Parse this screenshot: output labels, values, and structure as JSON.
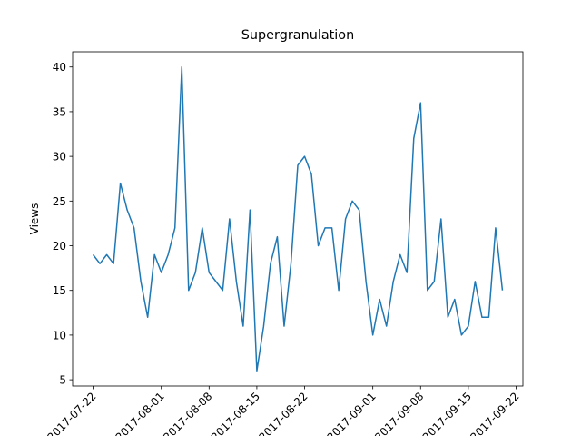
{
  "chart_data": {
    "type": "line",
    "title": "Supergranulation",
    "ylabel": "Views",
    "x": [
      "2017-07-22",
      "2017-07-23",
      "2017-07-24",
      "2017-07-25",
      "2017-07-26",
      "2017-07-27",
      "2017-07-28",
      "2017-07-29",
      "2017-07-30",
      "2017-07-31",
      "2017-08-01",
      "2017-08-02",
      "2017-08-03",
      "2017-08-04",
      "2017-08-05",
      "2017-08-06",
      "2017-08-07",
      "2017-08-08",
      "2017-08-09",
      "2017-08-10",
      "2017-08-11",
      "2017-08-12",
      "2017-08-13",
      "2017-08-14",
      "2017-08-15",
      "2017-08-16",
      "2017-08-17",
      "2017-08-18",
      "2017-08-19",
      "2017-08-20",
      "2017-08-21",
      "2017-08-22",
      "2017-08-23",
      "2017-08-24",
      "2017-08-25",
      "2017-08-26",
      "2017-08-27",
      "2017-08-28",
      "2017-08-29",
      "2017-08-30",
      "2017-08-31",
      "2017-09-01",
      "2017-09-02",
      "2017-09-03",
      "2017-09-04",
      "2017-09-05",
      "2017-09-06",
      "2017-09-07",
      "2017-09-08",
      "2017-09-09",
      "2017-09-10",
      "2017-09-11",
      "2017-09-12",
      "2017-09-13",
      "2017-09-14",
      "2017-09-15",
      "2017-09-16",
      "2017-09-17",
      "2017-09-18",
      "2017-09-19",
      "2017-09-20"
    ],
    "series": [
      {
        "color": "#1f77b4",
        "values": [
          19,
          18,
          19,
          18,
          27,
          24,
          22,
          16,
          12,
          19,
          17,
          19,
          22,
          40,
          15,
          17,
          22,
          17,
          16,
          15,
          23,
          16,
          11,
          24,
          6,
          11,
          18,
          21,
          11,
          18,
          29,
          30,
          28,
          20,
          22,
          22,
          15,
          23,
          25,
          24,
          16,
          10,
          14,
          11,
          16,
          19,
          17,
          32,
          36,
          15,
          16,
          23,
          12,
          14,
          10,
          11,
          16,
          12,
          12,
          22,
          15
        ]
      }
    ],
    "xlim": [
      "2017-07-19",
      "2017-09-23"
    ],
    "xticks": [
      "2017-07-22",
      "2017-08-01",
      "2017-08-08",
      "2017-08-15",
      "2017-08-22",
      "2017-09-01",
      "2017-09-08",
      "2017-09-15",
      "2017-09-22"
    ],
    "ylim": [
      4.3,
      41.7
    ],
    "yticks": [
      5,
      10,
      15,
      20,
      25,
      30,
      35,
      40
    ]
  }
}
